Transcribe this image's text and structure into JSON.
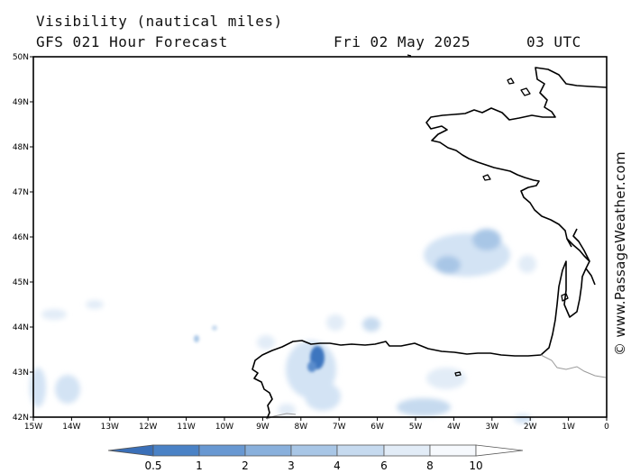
{
  "header": {
    "title": "Visibility (nautical miles)",
    "subtitle": "GFS 021 Hour Forecast",
    "date": "Fri 02 May 2025",
    "time": "03 UTC"
  },
  "credit": "© www.PassageWeather.com",
  "axes": {
    "lon_ticks": [
      "15W",
      "14W",
      "13W",
      "12W",
      "11W",
      "10W",
      "9W",
      "8W",
      "7W",
      "6W",
      "5W",
      "4W",
      "3W",
      "2W",
      "1W",
      "0"
    ],
    "lat_ticks": [
      "50N",
      "49N",
      "48N",
      "47N",
      "46N",
      "45N",
      "44N",
      "43N",
      "42N"
    ],
    "lon_range": [
      -15,
      0
    ],
    "lat_range": [
      42,
      50
    ]
  },
  "colorbar": {
    "labels": [
      "0.5",
      "1",
      "2",
      "3",
      "4",
      "6",
      "8",
      "10"
    ],
    "colors": [
      "#3a6fb8",
      "#4a82c6",
      "#6898d2",
      "#89b0dc",
      "#a8c6e6",
      "#c6daef",
      "#e2ecf7",
      "#f6f9fd",
      "#ffffff"
    ]
  },
  "map_colors": {
    "land": "#000000",
    "border": "#9a9a9a",
    "low_vis": "#3d76bf",
    "mid_vis": "#88afdc",
    "light_vis": "#d3e3f4"
  }
}
